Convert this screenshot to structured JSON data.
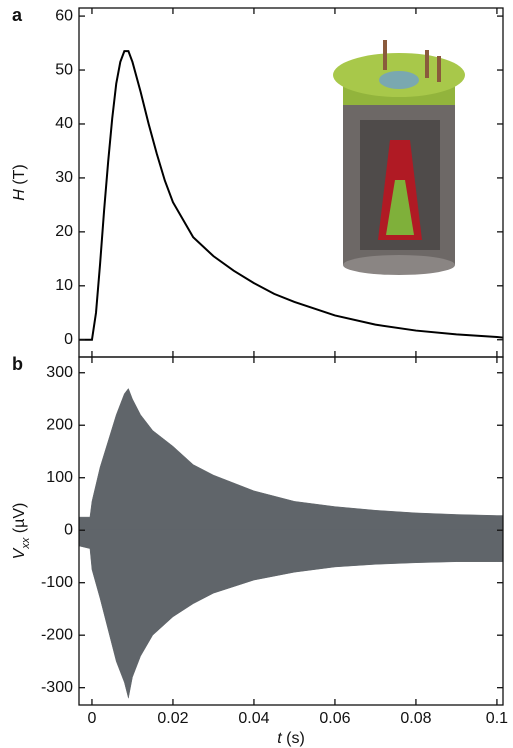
{
  "chart_data": [
    {
      "type": "line",
      "panel_label": "a",
      "y_label": {
        "symbol": "H",
        "unit": "(T)"
      },
      "xlim": [
        -0.0032,
        0.1015
      ],
      "xticks": [
        0,
        0.02,
        0.04,
        0.06,
        0.08,
        0.1
      ],
      "ylim": [
        -3.2,
        61.5
      ],
      "yticks": [
        0,
        10,
        20,
        30,
        40,
        50,
        60
      ],
      "x": [
        -0.0032,
        0,
        0.001,
        0.002,
        0.003,
        0.004,
        0.005,
        0.006,
        0.007,
        0.008,
        0.009,
        0.01,
        0.012,
        0.014,
        0.016,
        0.018,
        0.02,
        0.025,
        0.03,
        0.035,
        0.04,
        0.045,
        0.05,
        0.06,
        0.07,
        0.08,
        0.09,
        0.1,
        0.1015
      ],
      "series": [
        {
          "name": null,
          "color": "#000000",
          "values": [
            0,
            0,
            5,
            14,
            24,
            33,
            41,
            47.5,
            51.5,
            53.5,
            53.5,
            51.5,
            46,
            40,
            34.5,
            29.5,
            25.5,
            19,
            15.5,
            12.8,
            10.5,
            8.5,
            7,
            4.5,
            2.8,
            1.7,
            1.0,
            0.5,
            0.4
          ]
        }
      ]
    },
    {
      "type": "area",
      "panel_label": "b",
      "y_label": {
        "symbol": "V",
        "subscript": "xx",
        "unit": "(µV)"
      },
      "x_label": {
        "symbol": "t",
        "unit": "(s)"
      },
      "xlim": [
        -0.0032,
        0.1015
      ],
      "xticks": [
        0,
        0.02,
        0.04,
        0.06,
        0.08,
        0.1
      ],
      "ylim": [
        -333,
        330
      ],
      "yticks": [
        -300,
        -200,
        -100,
        0,
        100,
        200,
        300
      ],
      "x": [
        -0.0032,
        -0.0005,
        0,
        0.002,
        0.004,
        0.006,
        0.008,
        0.009,
        0.01,
        0.012,
        0.015,
        0.02,
        0.025,
        0.03,
        0.04,
        0.05,
        0.06,
        0.07,
        0.08,
        0.09,
        0.1,
        0.1015
      ],
      "series": [
        {
          "name": null,
          "color": "#60656a",
          "values": [
            25,
            25,
            55,
            120,
            170,
            220,
            260,
            270,
            250,
            220,
            190,
            160,
            125,
            105,
            75,
            55,
            45,
            38,
            33,
            30,
            28,
            28
          ]
        },
        {
          "name": null,
          "color": "#60656a",
          "values": [
            -30,
            -35,
            -75,
            -130,
            -190,
            -250,
            -290,
            -320,
            -280,
            -240,
            -200,
            -165,
            -140,
            -120,
            -95,
            -80,
            -70,
            -65,
            -62,
            -60,
            -60,
            -60
          ]
        }
      ]
    }
  ]
}
